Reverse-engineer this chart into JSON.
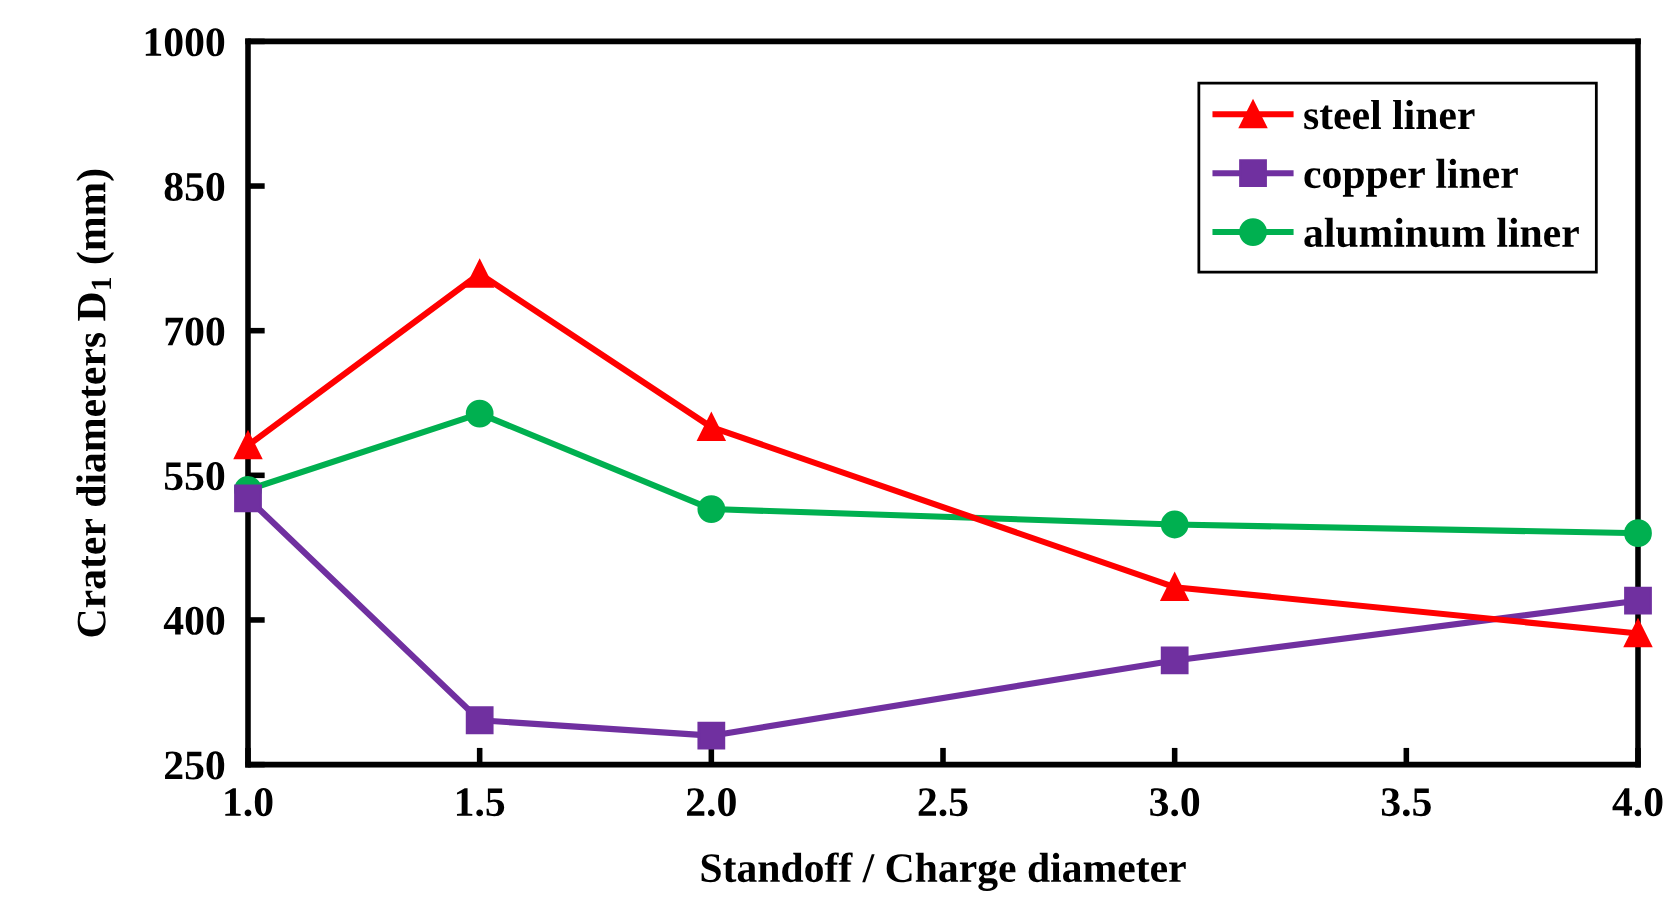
{
  "chart_data": {
    "type": "line",
    "xlabel": "Standoff / Charge diameter",
    "ylabel": "Crater diameters D$_{1}$ (mm)",
    "x": [
      1.0,
      1.5,
      2.0,
      3.0,
      4.0
    ],
    "series": [
      {
        "name": "steel liner",
        "color": "#ff0000",
        "marker": "triangle",
        "values": [
          581,
          759,
          600,
          434,
          386
        ]
      },
      {
        "name": "copper liner",
        "color": "#7030a0",
        "marker": "square",
        "values": [
          526,
          296,
          280,
          358,
          420
        ]
      },
      {
        "name": "aluminum liner",
        "color": "#00b050",
        "marker": "circle",
        "values": [
          535,
          614,
          515,
          499,
          490
        ]
      }
    ],
    "xlim": [
      1.0,
      4.0
    ],
    "xticks": [
      {
        "value": 1.0,
        "label": "1.0"
      },
      {
        "value": 1.5,
        "label": "1.5"
      },
      {
        "value": 2.0,
        "label": "2.0"
      },
      {
        "value": 2.5,
        "label": "2.5"
      },
      {
        "value": 3.0,
        "label": "3.0"
      },
      {
        "value": 3.5,
        "label": "3.5"
      },
      {
        "value": 4.0,
        "label": "4.0"
      }
    ],
    "ylim": [
      250,
      1000
    ],
    "yticks": [
      250,
      400,
      550,
      700,
      850,
      1000
    ],
    "grid": false,
    "legend": "top right",
    "line_style": "solid"
  }
}
